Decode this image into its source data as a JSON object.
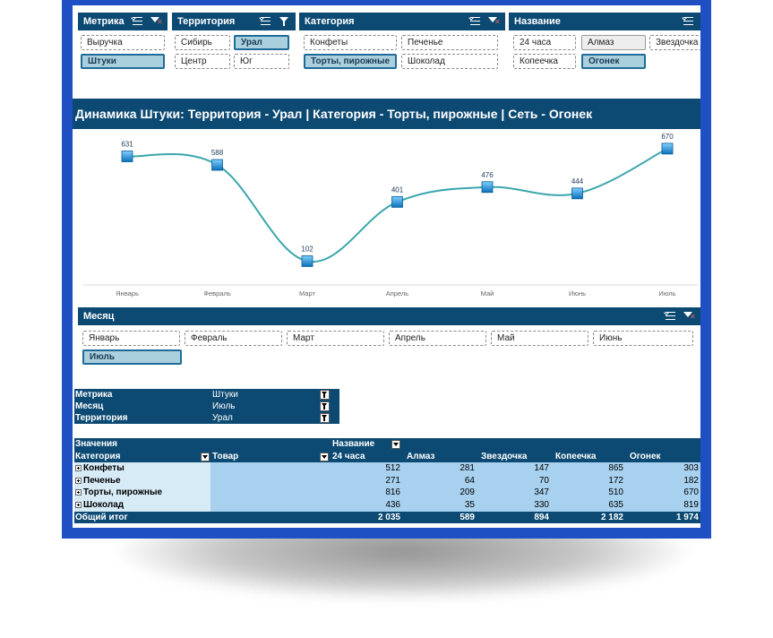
{
  "slicers": {
    "metric": {
      "title": "Метрика",
      "items": [
        "Выручка",
        "Штуки"
      ],
      "selected": "Штуки"
    },
    "territory": {
      "title": "Территория",
      "items": [
        "Сибирь",
        "Урал",
        "Центр",
        "Юг"
      ],
      "selected": "Урал"
    },
    "category": {
      "title": "Категория",
      "items": [
        "Конфеты",
        "Печенье",
        "Торты, пирожные",
        "Шоколад"
      ],
      "selected": "Торты, пирожные"
    },
    "name": {
      "title": "Название",
      "items": [
        "24 часа",
        "Алмаз",
        "Звездочка",
        "Копеечка",
        "Огонек"
      ],
      "selected": "Огонек"
    },
    "month": {
      "title": "Месяц",
      "items": [
        "Январь",
        "Февраль",
        "Март",
        "Апрель",
        "Май",
        "Июнь",
        "Июль"
      ],
      "selected": "Июль"
    }
  },
  "chart_title": "Динамика Штуки: Территория - Урал | Категория - Торты, пирожные | Сеть - Огонек",
  "chart_data": {
    "type": "line",
    "categories": [
      "Январь",
      "Февраль",
      "Март",
      "Апрель",
      "Май",
      "Июнь",
      "Июль"
    ],
    "values": [
      631,
      588,
      102,
      401,
      476,
      444,
      670
    ],
    "title": "Динамика Штуки: Территория - Урал | Категория - Торты, пирожные | Сеть - Огонек",
    "xlabel": "",
    "ylabel": "",
    "ylim": [
      0,
      760
    ],
    "grid": false,
    "data_labels": true,
    "line_color": "#3aa6ad",
    "marker_color": "#1c8fd6"
  },
  "filters": [
    {
      "label": "Метрика",
      "value": "Штуки"
    },
    {
      "label": "Месяц",
      "value": "Июль"
    },
    {
      "label": "Территория",
      "value": "Урал"
    }
  ],
  "pivot": {
    "values_label": "Значения",
    "column_field": "Название",
    "row_field": "Категория",
    "second_field": "Товар",
    "columns": [
      "24 часа",
      "Алмаз",
      "Звездочка",
      "Копеечка",
      "Огонек"
    ],
    "rows": [
      {
        "label": "Конфеты",
        "values": [
          "512",
          "281",
          "147",
          "865",
          "303"
        ]
      },
      {
        "label": "Печенье",
        "values": [
          "271",
          "64",
          "70",
          "172",
          "182"
        ]
      },
      {
        "label": "Торты, пирожные",
        "values": [
          "816",
          "209",
          "347",
          "510",
          "670"
        ]
      },
      {
        "label": "Шоколад",
        "values": [
          "436",
          "35",
          "330",
          "635",
          "819"
        ]
      }
    ],
    "total_label": "Общий итог",
    "totals": [
      "2 035",
      "589",
      "894",
      "2 182",
      "1 974"
    ]
  },
  "colors": {
    "frame": "#1f50c3",
    "header": "#0d4a73",
    "selected_item": "#a9d0dc",
    "pivot_fill": "#a7d1ef"
  }
}
